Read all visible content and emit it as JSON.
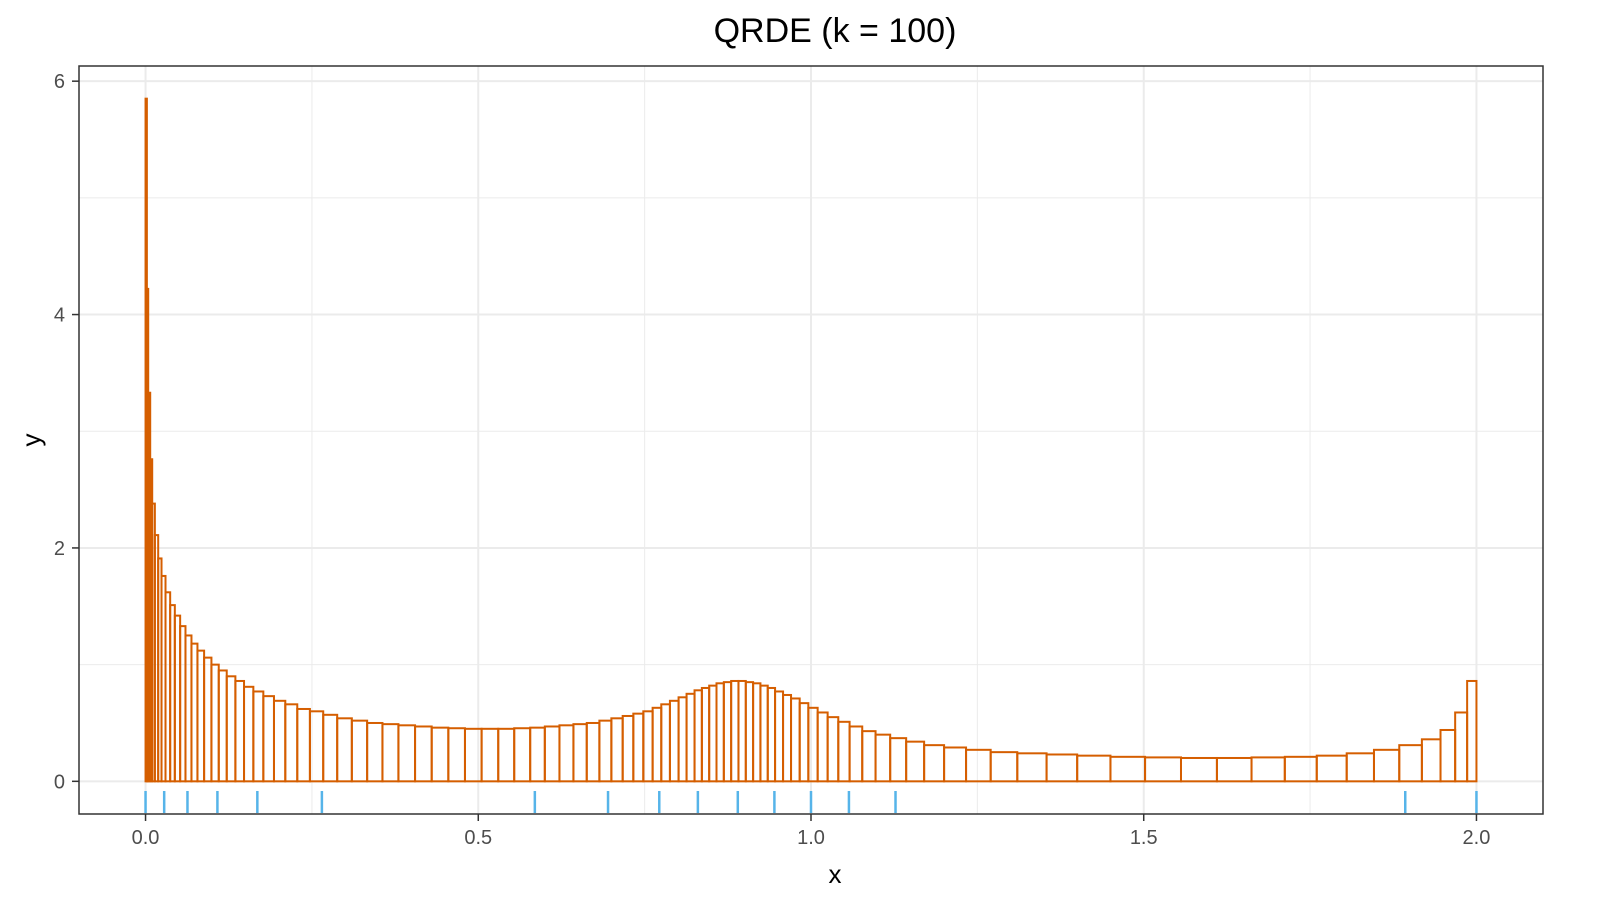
{
  "chart_data": {
    "type": "histogram",
    "title": "QRDE (k = 100)",
    "xlabel": "x",
    "ylabel": "y",
    "xlim": [
      -0.1,
      2.1
    ],
    "ylim": [
      -0.28,
      6.13
    ],
    "x_ticks": [
      0.0,
      0.5,
      1.0,
      1.5,
      2.0
    ],
    "x_tick_labels": [
      "0.0",
      "0.5",
      "1.0",
      "1.5",
      "2.0"
    ],
    "y_ticks": [
      0,
      2,
      4,
      6
    ],
    "y_tick_labels": [
      "0",
      "2",
      "4",
      "6"
    ],
    "grid": true,
    "legend": "none",
    "colors": {
      "bars": "#D55E00",
      "rug": "#56B4E9",
      "grid_major": "#EBEBEB",
      "panel_border": "#333333"
    },
    "series": [
      {
        "name": "",
        "kind": "step-histogram",
        "bins": [
          [
            0.0,
            0.002,
            5.85
          ],
          [
            0.002,
            0.004,
            4.22
          ],
          [
            0.004,
            0.007,
            3.33
          ],
          [
            0.007,
            0.01,
            2.76
          ],
          [
            0.01,
            0.014,
            2.38
          ],
          [
            0.014,
            0.019,
            2.11
          ],
          [
            0.019,
            0.024,
            1.91
          ],
          [
            0.024,
            0.03,
            1.76
          ],
          [
            0.03,
            0.037,
            1.62
          ],
          [
            0.037,
            0.044,
            1.51
          ],
          [
            0.044,
            0.052,
            1.42
          ],
          [
            0.052,
            0.06,
            1.33
          ],
          [
            0.06,
            0.069,
            1.25
          ],
          [
            0.069,
            0.078,
            1.18
          ],
          [
            0.078,
            0.088,
            1.12
          ],
          [
            0.088,
            0.099,
            1.06
          ],
          [
            0.099,
            0.11,
            1.0
          ],
          [
            0.11,
            0.122,
            0.95
          ],
          [
            0.122,
            0.135,
            0.9
          ],
          [
            0.135,
            0.148,
            0.86
          ],
          [
            0.148,
            0.162,
            0.81
          ],
          [
            0.162,
            0.177,
            0.77
          ],
          [
            0.177,
            0.193,
            0.73
          ],
          [
            0.193,
            0.21,
            0.69
          ],
          [
            0.21,
            0.228,
            0.66
          ],
          [
            0.228,
            0.247,
            0.62
          ],
          [
            0.247,
            0.267,
            0.6
          ],
          [
            0.267,
            0.288,
            0.57
          ],
          [
            0.288,
            0.31,
            0.54
          ],
          [
            0.31,
            0.333,
            0.52
          ],
          [
            0.333,
            0.356,
            0.5
          ],
          [
            0.356,
            0.38,
            0.49
          ],
          [
            0.38,
            0.405,
            0.48
          ],
          [
            0.405,
            0.43,
            0.47
          ],
          [
            0.43,
            0.455,
            0.46
          ],
          [
            0.455,
            0.48,
            0.455
          ],
          [
            0.48,
            0.505,
            0.45
          ],
          [
            0.505,
            0.53,
            0.45
          ],
          [
            0.53,
            0.554,
            0.45
          ],
          [
            0.554,
            0.578,
            0.455
          ],
          [
            0.578,
            0.6,
            0.46
          ],
          [
            0.6,
            0.622,
            0.47
          ],
          [
            0.622,
            0.643,
            0.48
          ],
          [
            0.643,
            0.663,
            0.49
          ],
          [
            0.663,
            0.682,
            0.5
          ],
          [
            0.682,
            0.7,
            0.52
          ],
          [
            0.7,
            0.717,
            0.54
          ],
          [
            0.717,
            0.733,
            0.56
          ],
          [
            0.733,
            0.748,
            0.58
          ],
          [
            0.748,
            0.762,
            0.6
          ],
          [
            0.762,
            0.775,
            0.63
          ],
          [
            0.775,
            0.788,
            0.66
          ],
          [
            0.788,
            0.801,
            0.69
          ],
          [
            0.801,
            0.813,
            0.72
          ],
          [
            0.813,
            0.825,
            0.75
          ],
          [
            0.825,
            0.836,
            0.78
          ],
          [
            0.836,
            0.847,
            0.8
          ],
          [
            0.847,
            0.858,
            0.82
          ],
          [
            0.858,
            0.869,
            0.84
          ],
          [
            0.869,
            0.88,
            0.85
          ],
          [
            0.88,
            0.891,
            0.86
          ],
          [
            0.891,
            0.902,
            0.86
          ],
          [
            0.902,
            0.913,
            0.85
          ],
          [
            0.913,
            0.924,
            0.84
          ],
          [
            0.924,
            0.935,
            0.82
          ],
          [
            0.935,
            0.946,
            0.8
          ],
          [
            0.946,
            0.958,
            0.77
          ],
          [
            0.958,
            0.97,
            0.74
          ],
          [
            0.97,
            0.983,
            0.71
          ],
          [
            0.983,
            0.996,
            0.67
          ],
          [
            0.996,
            1.01,
            0.63
          ],
          [
            1.01,
            1.025,
            0.59
          ],
          [
            1.025,
            1.041,
            0.55
          ],
          [
            1.041,
            1.058,
            0.51
          ],
          [
            1.058,
            1.077,
            0.47
          ],
          [
            1.077,
            1.097,
            0.43
          ],
          [
            1.097,
            1.119,
            0.4
          ],
          [
            1.119,
            1.143,
            0.37
          ],
          [
            1.143,
            1.17,
            0.34
          ],
          [
            1.17,
            1.2,
            0.31
          ],
          [
            1.2,
            1.233,
            0.29
          ],
          [
            1.233,
            1.27,
            0.27
          ],
          [
            1.27,
            1.31,
            0.25
          ],
          [
            1.31,
            1.354,
            0.24
          ],
          [
            1.354,
            1.4,
            0.23
          ],
          [
            1.4,
            1.45,
            0.22
          ],
          [
            1.45,
            1.502,
            0.21
          ],
          [
            1.502,
            1.556,
            0.205
          ],
          [
            1.556,
            1.61,
            0.2
          ],
          [
            1.61,
            1.662,
            0.2
          ],
          [
            1.662,
            1.712,
            0.205
          ],
          [
            1.712,
            1.76,
            0.21
          ],
          [
            1.76,
            1.805,
            0.22
          ],
          [
            1.805,
            1.846,
            0.24
          ],
          [
            1.846,
            1.884,
            0.27
          ],
          [
            1.884,
            1.918,
            0.31
          ],
          [
            1.918,
            1.946,
            0.36
          ],
          [
            1.946,
            1.968,
            0.44
          ],
          [
            1.968,
            1.986,
            0.59
          ],
          [
            1.986,
            2.0,
            0.86
          ]
        ]
      }
    ],
    "rug": [
      0.0,
      0.028,
      0.063,
      0.108,
      0.168,
      0.265,
      0.585,
      0.695,
      0.772,
      0.83,
      0.89,
      0.945,
      1.0,
      1.057,
      1.127,
      1.893,
      2.0
    ]
  }
}
